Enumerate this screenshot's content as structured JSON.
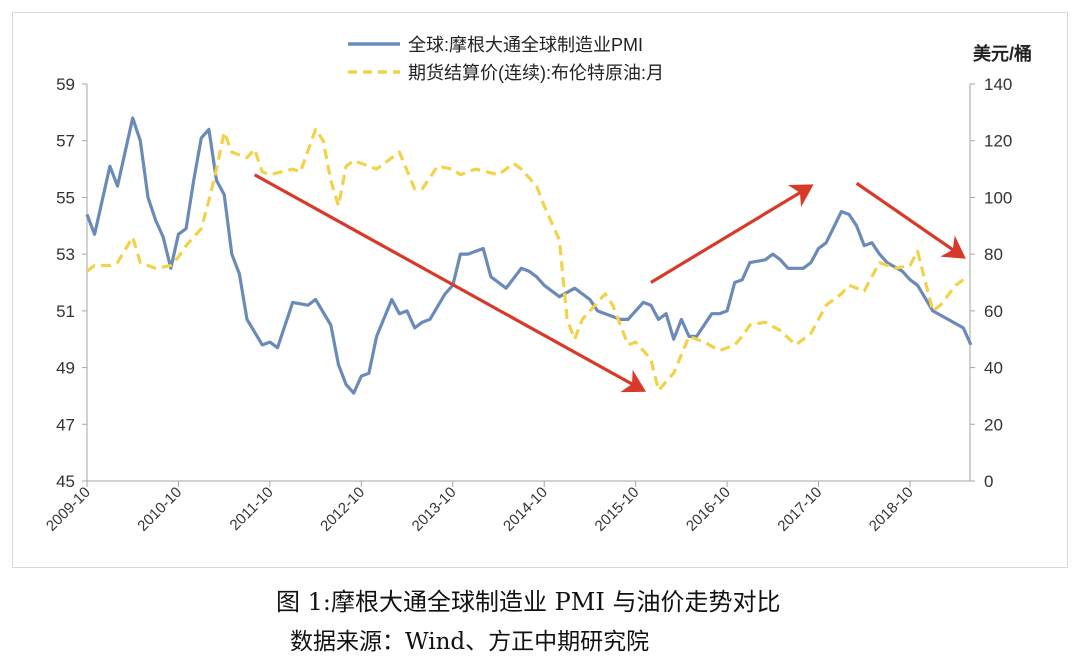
{
  "chart_data": {
    "type": "line",
    "title": "",
    "x_tick_labels": [
      "2009-10",
      "2010-10",
      "2011-10",
      "2012-10",
      "2013-10",
      "2014-10",
      "2015-10",
      "2016-10",
      "2017-10",
      "2018-10"
    ],
    "x_start": "2009-10",
    "y_left": {
      "ticks": [
        45,
        47,
        49,
        51,
        53,
        55,
        57,
        59
      ],
      "range": [
        45,
        59
      ]
    },
    "y_right": {
      "label": "美元/桶",
      "ticks": [
        0,
        20,
        40,
        60,
        80,
        100,
        120,
        140
      ],
      "range": [
        0,
        140
      ]
    },
    "grid": false,
    "legend_position": "top-center",
    "series": [
      {
        "name": "全球:摩根大通全球制造业PMI",
        "axis": "left",
        "color": "#6a8ab8",
        "style": "solid",
        "points": [
          [
            "2009-10",
            54.4
          ],
          [
            "2009-11",
            53.7
          ],
          [
            "2010-01",
            56.1
          ],
          [
            "2010-02",
            55.4
          ],
          [
            "2010-04",
            57.8
          ],
          [
            "2010-05",
            57.0
          ],
          [
            "2010-06",
            55.0
          ],
          [
            "2010-07",
            54.2
          ],
          [
            "2010-08",
            53.6
          ],
          [
            "2010-09",
            52.5
          ],
          [
            "2010-10",
            53.7
          ],
          [
            "2010-11",
            53.9
          ],
          [
            "2010-12",
            55.6
          ],
          [
            "2011-01",
            57.1
          ],
          [
            "2011-02",
            57.4
          ],
          [
            "2011-03",
            55.6
          ],
          [
            "2011-04",
            55.1
          ],
          [
            "2011-05",
            53.0
          ],
          [
            "2011-06",
            52.3
          ],
          [
            "2011-07",
            50.7
          ],
          [
            "2011-09",
            49.8
          ],
          [
            "2011-10",
            49.9
          ],
          [
            "2011-11",
            49.7
          ],
          [
            "2012-01",
            51.3
          ],
          [
            "2012-03",
            51.2
          ],
          [
            "2012-04",
            51.4
          ],
          [
            "2012-06",
            50.5
          ],
          [
            "2012-07",
            49.1
          ],
          [
            "2012-08",
            48.4
          ],
          [
            "2012-09",
            48.1
          ],
          [
            "2012-10",
            48.7
          ],
          [
            "2012-11",
            48.8
          ],
          [
            "2012-12",
            50.1
          ],
          [
            "2013-02",
            51.4
          ],
          [
            "2013-03",
            50.9
          ],
          [
            "2013-04",
            51.0
          ],
          [
            "2013-05",
            50.4
          ],
          [
            "2013-06",
            50.6
          ],
          [
            "2013-07",
            50.7
          ],
          [
            "2013-09",
            51.6
          ],
          [
            "2013-10",
            51.9
          ],
          [
            "2013-11",
            53.0
          ],
          [
            "2013-12",
            53.0
          ],
          [
            "2014-02",
            53.2
          ],
          [
            "2014-03",
            52.2
          ],
          [
            "2014-05",
            51.8
          ],
          [
            "2014-07",
            52.5
          ],
          [
            "2014-08",
            52.4
          ],
          [
            "2014-09",
            52.2
          ],
          [
            "2014-10",
            51.9
          ],
          [
            "2014-12",
            51.5
          ],
          [
            "2015-02",
            51.8
          ],
          [
            "2015-04",
            51.4
          ],
          [
            "2015-05",
            51.0
          ],
          [
            "2015-06",
            50.9
          ],
          [
            "2015-08",
            50.7
          ],
          [
            "2015-09",
            50.7
          ],
          [
            "2015-11",
            51.3
          ],
          [
            "2015-12",
            51.2
          ],
          [
            "2016-01",
            50.7
          ],
          [
            "2016-02",
            50.9
          ],
          [
            "2016-03",
            50.0
          ],
          [
            "2016-04",
            50.7
          ],
          [
            "2016-05",
            50.1
          ],
          [
            "2016-06",
            50.1
          ],
          [
            "2016-08",
            50.9
          ],
          [
            "2016-09",
            50.9
          ],
          [
            "2016-10",
            51.0
          ],
          [
            "2016-11",
            52.0
          ],
          [
            "2016-12",
            52.1
          ],
          [
            "2017-01",
            52.7
          ],
          [
            "2017-03",
            52.8
          ],
          [
            "2017-04",
            53.0
          ],
          [
            "2017-05",
            52.8
          ],
          [
            "2017-06",
            52.5
          ],
          [
            "2017-08",
            52.5
          ],
          [
            "2017-09",
            52.7
          ],
          [
            "2017-10",
            53.2
          ],
          [
            "2017-11",
            53.4
          ],
          [
            "2018-01",
            54.5
          ],
          [
            "2018-02",
            54.4
          ],
          [
            "2018-03",
            54.0
          ],
          [
            "2018-04",
            53.3
          ],
          [
            "2018-05",
            53.4
          ],
          [
            "2018-06",
            53.0
          ],
          [
            "2018-07",
            52.7
          ],
          [
            "2018-09",
            52.4
          ],
          [
            "2018-10",
            52.1
          ],
          [
            "2018-11",
            51.9
          ],
          [
            "2019-01",
            51.0
          ],
          [
            "2019-03",
            50.7
          ],
          [
            "2019-05",
            50.4
          ],
          [
            "2019-06",
            49.8
          ]
        ]
      },
      {
        "name": "期货结算价(连续):布伦特原油:月",
        "axis": "right",
        "color": "#f2d24a",
        "style": "dashed",
        "points": [
          [
            "2009-10",
            74
          ],
          [
            "2009-11",
            76
          ],
          [
            "2010-01",
            76
          ],
          [
            "2010-02",
            77
          ],
          [
            "2010-04",
            86
          ],
          [
            "2010-05",
            77
          ],
          [
            "2010-07",
            75
          ],
          [
            "2010-09",
            76
          ],
          [
            "2010-10",
            79
          ],
          [
            "2010-11",
            83
          ],
          [
            "2011-01",
            89
          ],
          [
            "2011-02",
            99
          ],
          [
            "2011-03",
            110
          ],
          [
            "2011-04",
            123
          ],
          [
            "2011-05",
            116
          ],
          [
            "2011-07",
            114
          ],
          [
            "2011-08",
            117
          ],
          [
            "2011-09",
            109
          ],
          [
            "2011-10",
            108
          ],
          [
            "2012-01",
            110
          ],
          [
            "2012-02",
            109
          ],
          [
            "2012-04",
            124
          ],
          [
            "2012-05",
            120
          ],
          [
            "2012-06",
            106
          ],
          [
            "2012-07",
            97
          ],
          [
            "2012-08",
            111
          ],
          [
            "2012-09",
            113
          ],
          [
            "2012-11",
            111
          ],
          [
            "2012-12",
            110
          ],
          [
            "2013-03",
            116
          ],
          [
            "2013-05",
            103
          ],
          [
            "2013-06",
            103
          ],
          [
            "2013-08",
            111
          ],
          [
            "2013-10",
            110
          ],
          [
            "2013-11",
            108
          ],
          [
            "2014-01",
            110
          ],
          [
            "2014-04",
            108
          ],
          [
            "2014-06",
            112
          ],
          [
            "2014-07",
            110
          ],
          [
            "2014-09",
            104
          ],
          [
            "2014-10",
            97
          ],
          [
            "2014-12",
            85
          ],
          [
            "2015-01",
            57
          ],
          [
            "2015-02",
            50
          ],
          [
            "2015-03",
            57
          ],
          [
            "2015-04",
            60
          ],
          [
            "2015-06",
            66
          ],
          [
            "2015-07",
            62
          ],
          [
            "2015-09",
            48
          ],
          [
            "2015-10",
            49
          ],
          [
            "2015-12",
            43
          ],
          [
            "2016-01",
            32
          ],
          [
            "2016-03",
            38
          ],
          [
            "2016-05",
            51
          ],
          [
            "2016-07",
            49
          ],
          [
            "2016-09",
            46
          ],
          [
            "2016-11",
            48
          ],
          [
            "2016-12",
            51
          ],
          [
            "2017-01",
            55
          ],
          [
            "2017-03",
            56
          ],
          [
            "2017-05",
            53
          ],
          [
            "2017-07",
            48
          ],
          [
            "2017-09",
            52
          ],
          [
            "2017-11",
            62
          ],
          [
            "2018-01",
            66
          ],
          [
            "2018-02",
            69
          ],
          [
            "2018-04",
            67
          ],
          [
            "2018-06",
            77
          ],
          [
            "2018-08",
            75
          ],
          [
            "2018-10",
            76
          ],
          [
            "2018-11",
            81
          ],
          [
            "2019-01",
            60
          ],
          [
            "2019-02",
            62
          ],
          [
            "2019-04",
            69
          ],
          [
            "2019-05",
            71
          ]
        ]
      }
    ],
    "annotations": [
      {
        "type": "arrow",
        "color": "#d83a2a",
        "from": [
          "2011-08",
          55.8
        ],
        "to": [
          "2015-11",
          48.2
        ],
        "axis": "left"
      },
      {
        "type": "arrow",
        "color": "#d83a2a",
        "from": [
          "2015-12",
          52.0
        ],
        "to": [
          "2017-09",
          55.4
        ],
        "axis": "left"
      },
      {
        "type": "arrow",
        "color": "#d83a2a",
        "from": [
          "2018-03",
          55.5
        ],
        "to": [
          "2019-05",
          52.9
        ],
        "axis": "left"
      }
    ]
  },
  "caption": {
    "title": "图 1:摩根大通全球制造业 PMI 与油价走势对比",
    "source": "数据来源：Wind、方正中期研究院"
  }
}
